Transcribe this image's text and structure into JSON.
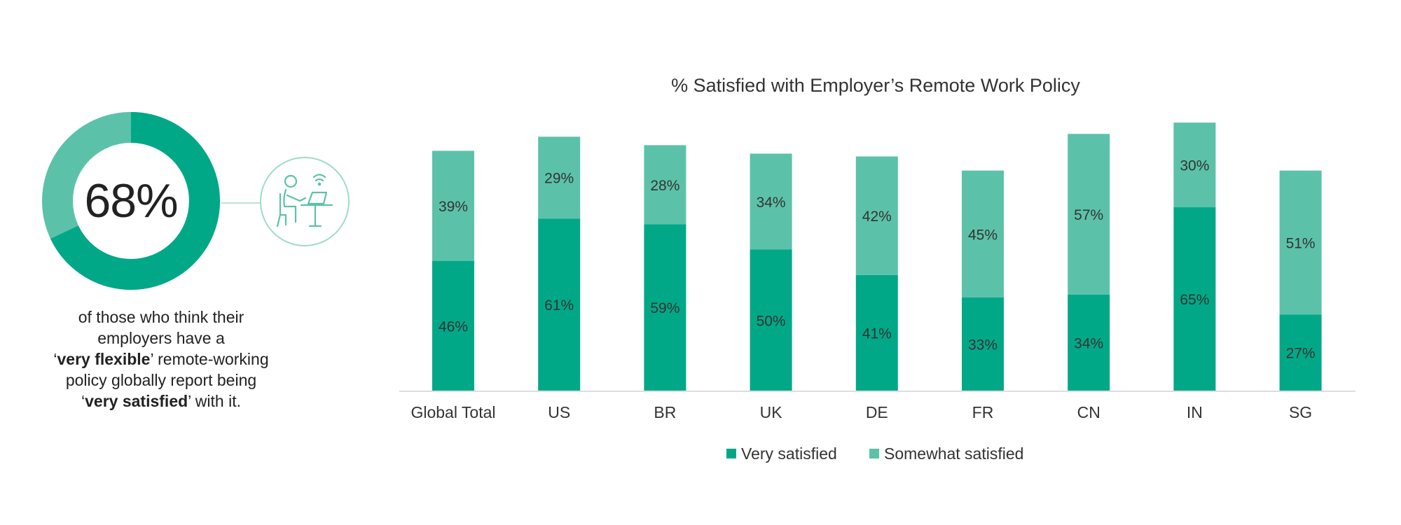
{
  "infographic": {
    "stat_value": "68%",
    "stat_fraction": 0.68,
    "caption": {
      "line1": "of those who think their",
      "line2": "employers have a",
      "line3_pre": "‘",
      "line3_bold": "very flexible",
      "line3_post": "’ remote-working",
      "line4": "policy globally report being",
      "line5_pre": "‘",
      "line5_bold": "very satisfied",
      "line5_post": "’ with it."
    },
    "icon": "remote-worker-icon"
  },
  "colors": {
    "very_satisfied": "#00a887",
    "somewhat_satisfied": "#5bc2a9",
    "axis": "#dddddd",
    "badge_stroke": "#9edbc8"
  },
  "chart_data": {
    "type": "bar",
    "stacked": true,
    "title": "% Satisfied with Employer’s Remote Work Policy",
    "categories": [
      "Global Total",
      "US",
      "BR",
      "UK",
      "DE",
      "FR",
      "CN",
      "IN",
      "SG"
    ],
    "series": [
      {
        "name": "Very satisfied",
        "values": [
          46,
          61,
          59,
          50,
          41,
          33,
          34,
          65,
          27
        ],
        "labels": [
          "46%",
          "61%",
          "59%",
          "50%",
          "41%",
          "33%",
          "34%",
          "65%",
          "27%"
        ]
      },
      {
        "name": "Somewhat satisfied",
        "values": [
          39,
          29,
          28,
          34,
          42,
          45,
          57,
          30,
          51
        ],
        "labels": [
          "39%",
          "29%",
          "28%",
          "34%",
          "42%",
          "45%",
          "57%",
          "30%",
          "51%"
        ]
      }
    ],
    "xlabel": "",
    "ylabel": "",
    "ylim": [
      0,
      100
    ],
    "grid": false,
    "legend_position": "bottom"
  }
}
